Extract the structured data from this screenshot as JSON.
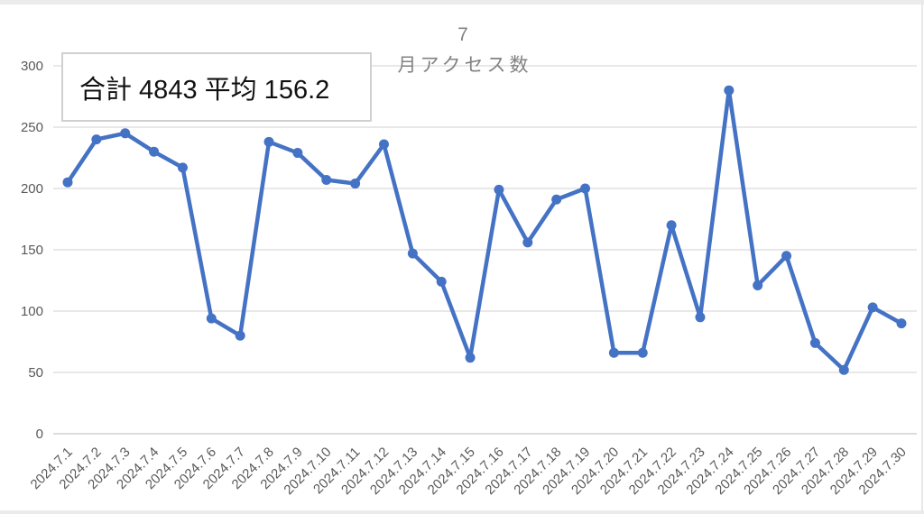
{
  "stats_box": {
    "text": "合計 4843 平均 156.2"
  },
  "chart_data": {
    "type": "line",
    "title": "7月アクセス数",
    "title_line1": "7",
    "title_line2": "月アクセス数",
    "xlabel": "",
    "ylabel": "",
    "ylim": [
      0,
      300
    ],
    "y_ticks": [
      0,
      50,
      100,
      150,
      200,
      250,
      300
    ],
    "grid": true,
    "legend": "none",
    "categories": [
      "2024.7.1",
      "2024.7.2",
      "2024.7.3",
      "2024.7.4",
      "2024.7.5",
      "2024.7.6",
      "2024.7.7",
      "2024.7.8",
      "2024.7.9",
      "2024.7.10",
      "2024.7.11",
      "2024.7.12",
      "2024.7.13",
      "2024.7.14",
      "2024.7.15",
      "2024.7.16",
      "2024.7.17",
      "2024.7.18",
      "2024.7.19",
      "2024.7.20",
      "2024.7.21",
      "2024.7.22",
      "2024.7.23",
      "2024.7.24",
      "2024.7.25",
      "2024.7.26",
      "2024.7.27",
      "2024.7.28",
      "2024.7.29",
      "2024.7.30"
    ],
    "values": [
      205,
      240,
      245,
      230,
      217,
      94,
      80,
      238,
      229,
      207,
      204,
      236,
      147,
      124,
      62,
      199,
      156,
      191,
      200,
      66,
      66,
      170,
      95,
      280,
      121,
      145,
      74,
      52,
      103,
      90
    ],
    "colors": {
      "line": "#4472C4",
      "marker": "#4472C4",
      "gridline": "#D9D9D9",
      "axis_line": "#C6C6C6",
      "tick_label": "#595959",
      "title": "#828282"
    }
  }
}
